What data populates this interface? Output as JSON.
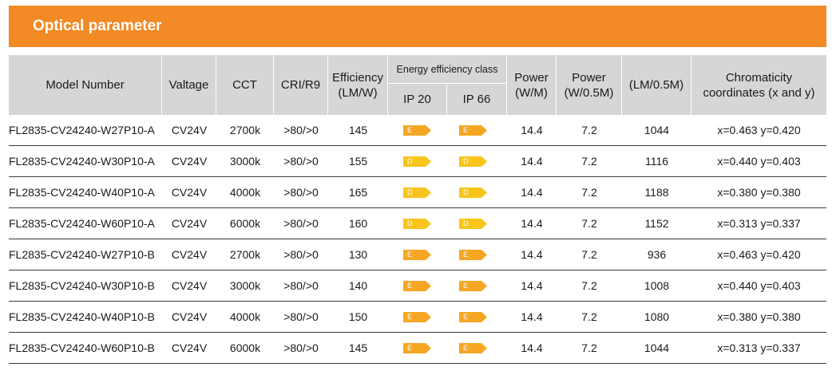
{
  "section_title": "Optical parameter",
  "headers": {
    "model": "Model Number",
    "voltage": "Valtage",
    "cct": "CCT",
    "cri": "CRI/R9",
    "efficiency": "Efficiency\n(LM/W)",
    "energy_class": "Energy efficiency class",
    "ip20": "IP 20",
    "ip66": "IP 66",
    "power_m": "Power\n(W/M)",
    "power_half": "Power\n(W/0.5M)",
    "lm": "(LM/0.5M)",
    "chroma": "Chromaticity\ncoordinates (x and y)"
  },
  "colors": {
    "accent": "#f28a25",
    "header_bg": "#d6d6d6",
    "class_E": "#f5a623",
    "class_D": "#f7c51c"
  },
  "rows": [
    {
      "model": "FL2835-CV24240-W27P10-A",
      "voltage": "CV24V",
      "cct": "2700k",
      "cri": ">80/>0",
      "efficiency": "145",
      "ip20": "E",
      "ip66": "E",
      "power_m": "14.4",
      "power_half": "7.2",
      "lm": "1044",
      "chroma": "x=0.463 y=0.420"
    },
    {
      "model": "FL2835-CV24240-W30P10-A",
      "voltage": "CV24V",
      "cct": "3000k",
      "cri": ">80/>0",
      "efficiency": "155",
      "ip20": "D",
      "ip66": "D",
      "power_m": "14.4",
      "power_half": "7.2",
      "lm": "1116",
      "chroma": "x=0.440 y=0.403"
    },
    {
      "model": "FL2835-CV24240-W40P10-A",
      "voltage": "CV24V",
      "cct": "4000k",
      "cri": ">80/>0",
      "efficiency": "165",
      "ip20": "D",
      "ip66": "D",
      "power_m": "14.4",
      "power_half": "7.2",
      "lm": "1188",
      "chroma": "x=0.380 y=0.380"
    },
    {
      "model": "FL2835-CV24240-W60P10-A",
      "voltage": "CV24V",
      "cct": "6000k",
      "cri": ">80/>0",
      "efficiency": "160",
      "ip20": "D",
      "ip66": "D",
      "power_m": "14.4",
      "power_half": "7.2",
      "lm": "1152",
      "chroma": "x=0.313 y=0.337"
    },
    {
      "model": "FL2835-CV24240-W27P10-B",
      "voltage": "CV24V",
      "cct": "2700k",
      "cri": ">80/>0",
      "efficiency": "130",
      "ip20": "E",
      "ip66": "E",
      "power_m": "14.4",
      "power_half": "7.2",
      "lm": "936",
      "chroma": "x=0.463 y=0.420"
    },
    {
      "model": "FL2835-CV24240-W30P10-B",
      "voltage": "CV24V",
      "cct": "3000k",
      "cri": ">80/>0",
      "efficiency": "140",
      "ip20": "E",
      "ip66": "E",
      "power_m": "14.4",
      "power_half": "7.2",
      "lm": "1008",
      "chroma": "x=0.440 y=0.403"
    },
    {
      "model": "FL2835-CV24240-W40P10-B",
      "voltage": "CV24V",
      "cct": "4000k",
      "cri": ">80/>0",
      "efficiency": "150",
      "ip20": "E",
      "ip66": "E",
      "power_m": "14.4",
      "power_half": "7.2",
      "lm": "1080",
      "chroma": "x=0.380 y=0.380"
    },
    {
      "model": "FL2835-CV24240-W60P10-B",
      "voltage": "CV24V",
      "cct": "6000k",
      "cri": ">80/>0",
      "efficiency": "145",
      "ip20": "E",
      "ip66": "E",
      "power_m": "14.4",
      "power_half": "7.2",
      "lm": "1044",
      "chroma": "x=0.313 y=0.337"
    }
  ]
}
